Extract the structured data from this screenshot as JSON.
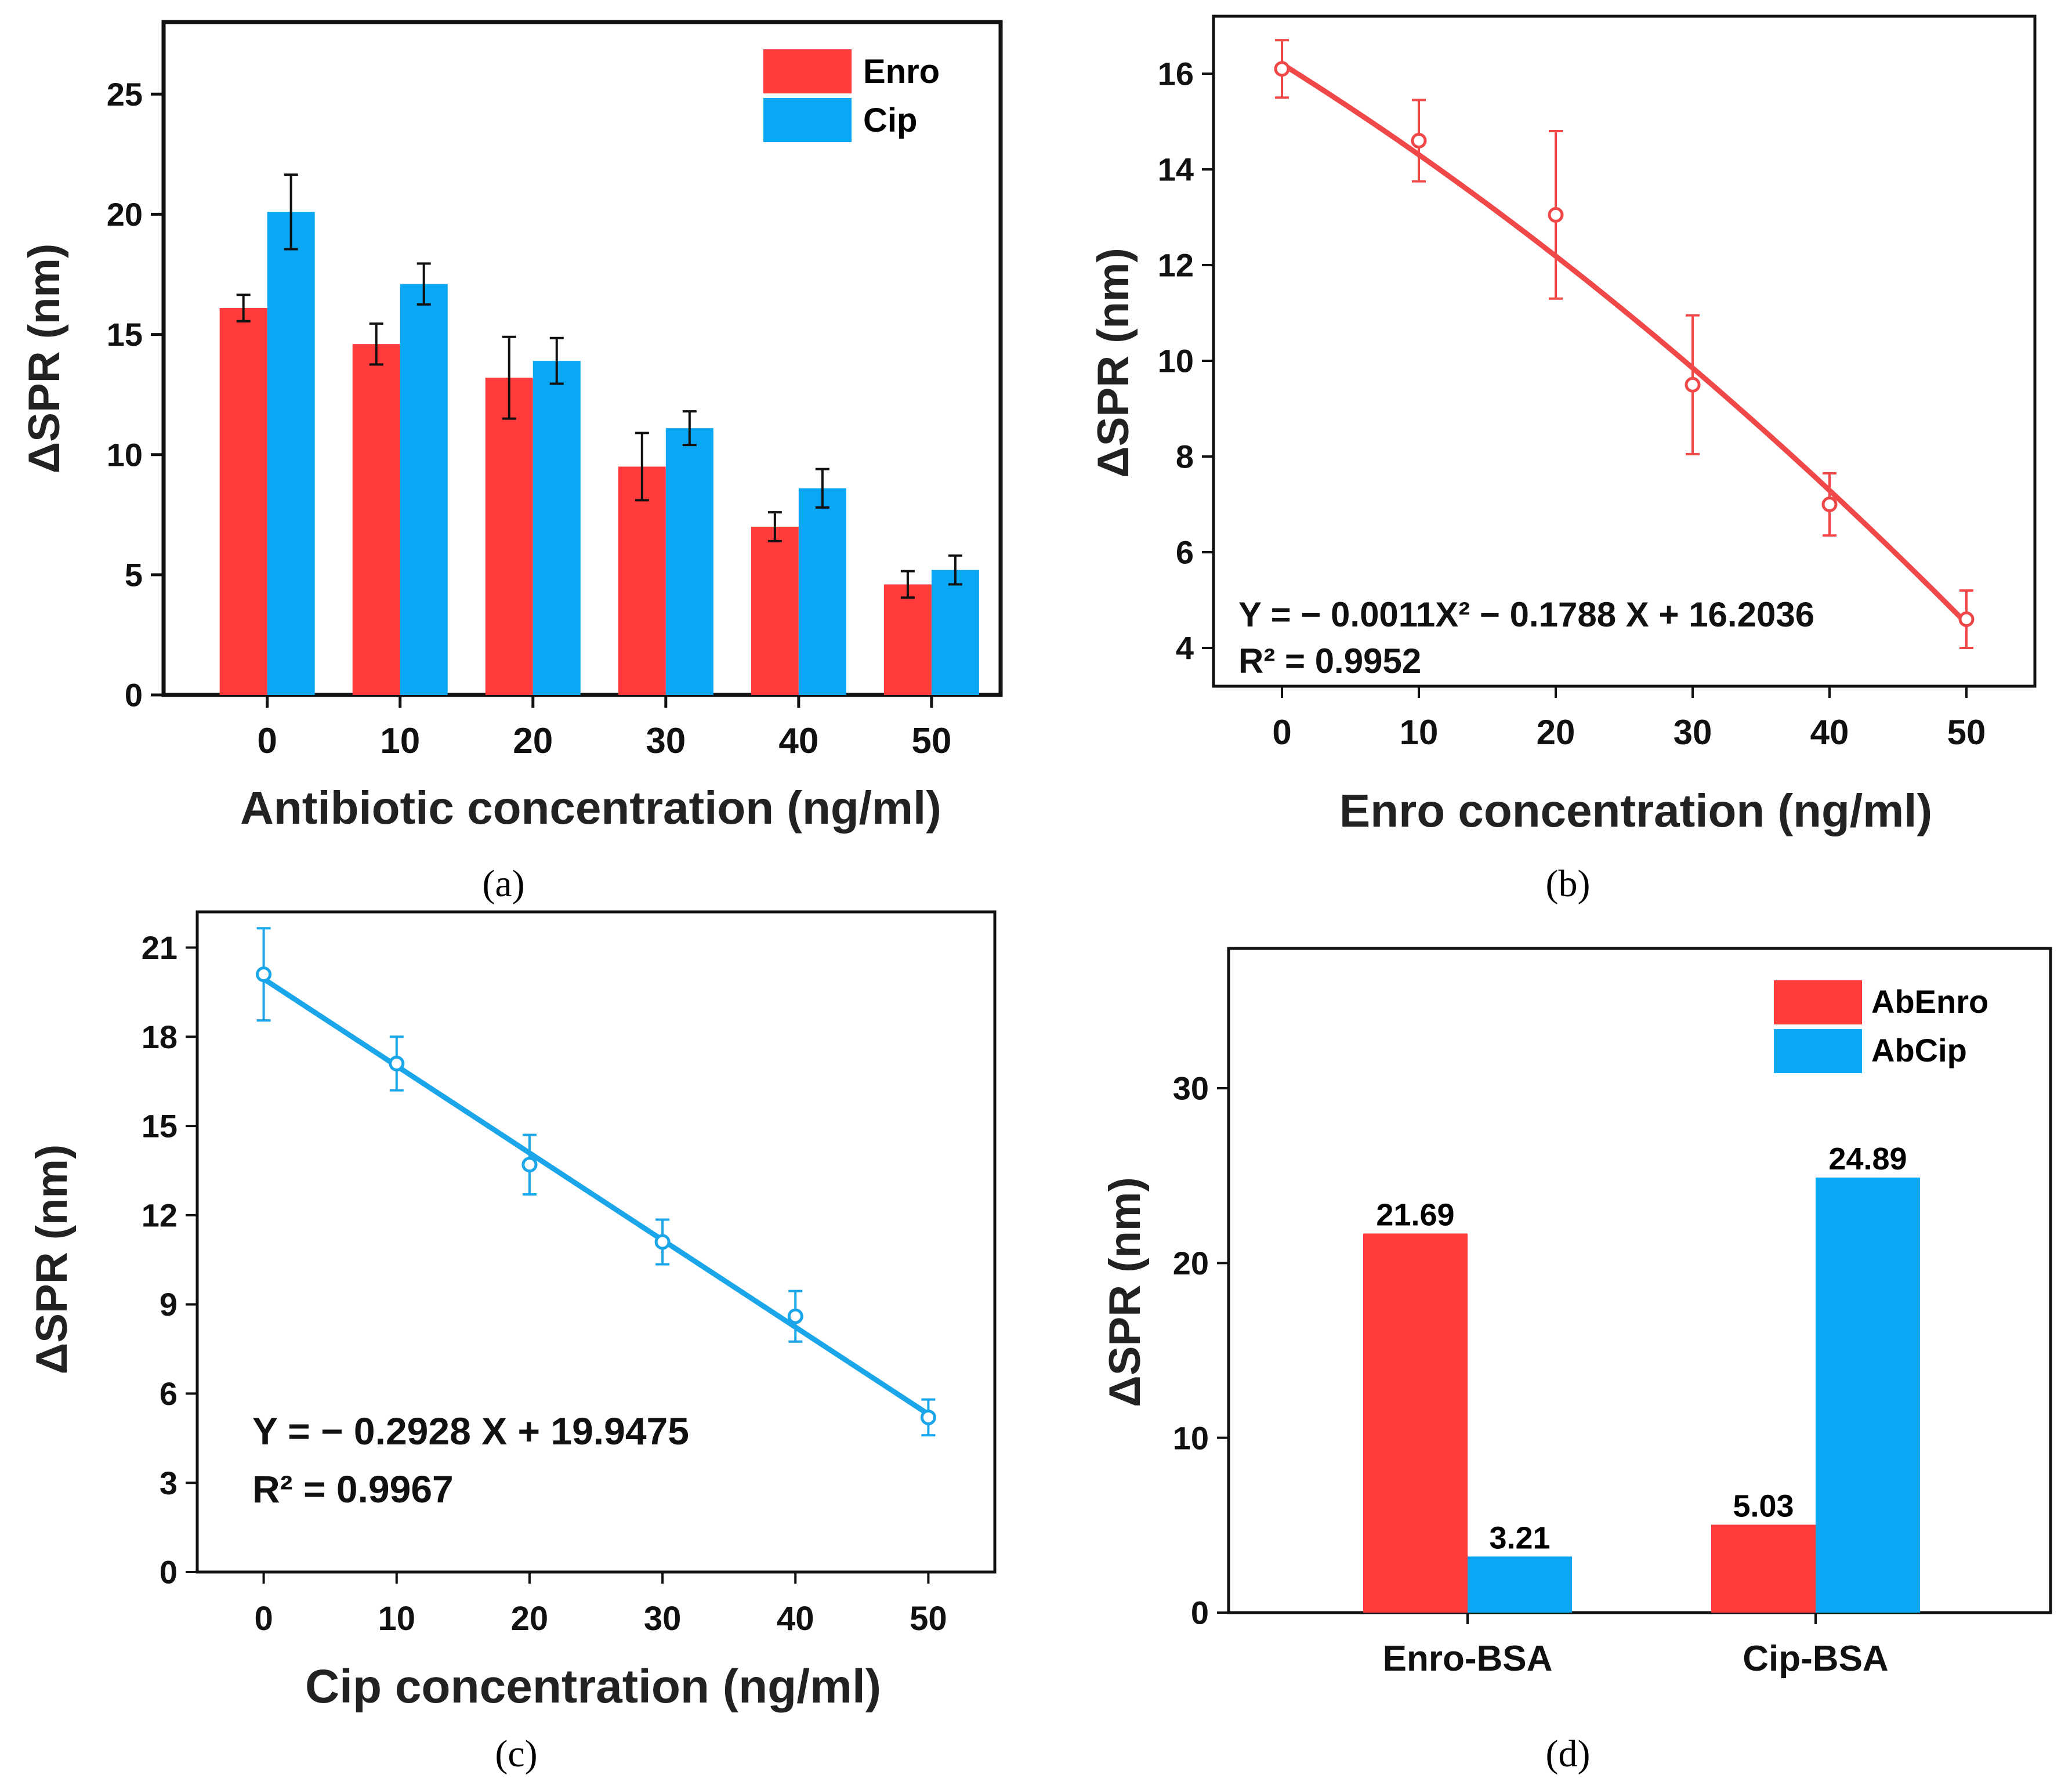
{
  "colors": {
    "enro": "#ff3b3b",
    "cip": "#0aa7f4",
    "axis": "#111111",
    "fit_enro": "#f04848",
    "fit_cip": "#1aa6e8"
  },
  "chart_data": [
    {
      "id": "a",
      "type": "bar",
      "caption": "(a)",
      "title": "",
      "xlabel": "Antibiotic concentration (ng/ml)",
      "ylabel": "ΔSPR (nm)",
      "ylim": [
        0,
        28
      ],
      "yticks": [
        "0",
        "5",
        "10",
        "15",
        "20",
        "25"
      ],
      "categories": [
        "0",
        "10",
        "20",
        "30",
        "40",
        "50"
      ],
      "legend_position": "top-right",
      "series": [
        {
          "name": "Enro",
          "color": "#ff3b3b",
          "values": [
            16.1,
            14.6,
            13.2,
            9.5,
            7.0,
            4.6
          ],
          "errors": [
            0.55,
            0.85,
            1.7,
            1.4,
            0.6,
            0.55
          ]
        },
        {
          "name": "Cip",
          "color": "#0aa7f4",
          "values": [
            20.1,
            17.1,
            13.9,
            11.1,
            8.6,
            5.2
          ],
          "errors": [
            1.55,
            0.85,
            0.95,
            0.7,
            0.8,
            0.6
          ]
        }
      ]
    },
    {
      "id": "b",
      "type": "scatter",
      "caption": "(b)",
      "title": "",
      "xlabel": "Enro concentration (ng/ml)",
      "ylabel": "ΔSPR (nm)",
      "xlim": [
        -5,
        55
      ],
      "ylim": [
        3.2,
        17.2
      ],
      "xticks": [
        "0",
        "10",
        "20",
        "30",
        "40",
        "50"
      ],
      "yticks": [
        "4",
        "6",
        "8",
        "10",
        "12",
        "14",
        "16"
      ],
      "x": [
        0,
        10,
        20,
        30,
        40,
        50
      ],
      "y": [
        16.1,
        14.6,
        13.05,
        9.5,
        7.0,
        4.6
      ],
      "errors": [
        0.6,
        0.85,
        1.75,
        1.45,
        0.65,
        0.6
      ],
      "fit": {
        "a": -0.0011,
        "b": -0.1788,
        "c": 16.2036
      },
      "equation": "Y = − 0.0011X² − 0.1788 X + 16.2036",
      "r2": "R² = 0.9952",
      "color": "#f04848"
    },
    {
      "id": "c",
      "type": "scatter",
      "caption": "(c)",
      "title": "",
      "xlabel": "Cip concentration (ng/ml)",
      "ylabel": "ΔSPR (nm)",
      "xlim": [
        -5,
        55
      ],
      "ylim": [
        0,
        22.2
      ],
      "xticks": [
        "0",
        "10",
        "20",
        "30",
        "40",
        "50"
      ],
      "yticks": [
        "0",
        "3",
        "6",
        "9",
        "12",
        "15",
        "18",
        "21"
      ],
      "x": [
        0,
        10,
        20,
        30,
        40,
        50
      ],
      "y": [
        20.1,
        17.1,
        13.7,
        11.1,
        8.6,
        5.2
      ],
      "errors": [
        1.55,
        0.9,
        1.0,
        0.75,
        0.85,
        0.6
      ],
      "fit": {
        "a": 0,
        "b": -0.2928,
        "c": 19.9475
      },
      "equation": "Y = − 0.2928 X + 19.9475",
      "r2": "R² = 0.9967",
      "color": "#1aa6e8"
    },
    {
      "id": "d",
      "type": "bar",
      "caption": "(d)",
      "title": "",
      "xlabel": "",
      "ylabel": "ΔSPR (nm)",
      "ylim": [
        0,
        38
      ],
      "yticks": [
        "0",
        "10",
        "20",
        "30"
      ],
      "categories": [
        "Enro-BSA",
        "Cip-BSA"
      ],
      "legend_position": "top-right",
      "series": [
        {
          "name": "AbEnro",
          "color": "#ff3b3b",
          "values": [
            21.69,
            5.03
          ],
          "labels": [
            "21.69",
            "5.03"
          ]
        },
        {
          "name": "AbCip",
          "color": "#0aa7f4",
          "values": [
            3.21,
            24.89
          ],
          "labels": [
            "3.21",
            "24.89"
          ]
        }
      ]
    }
  ]
}
